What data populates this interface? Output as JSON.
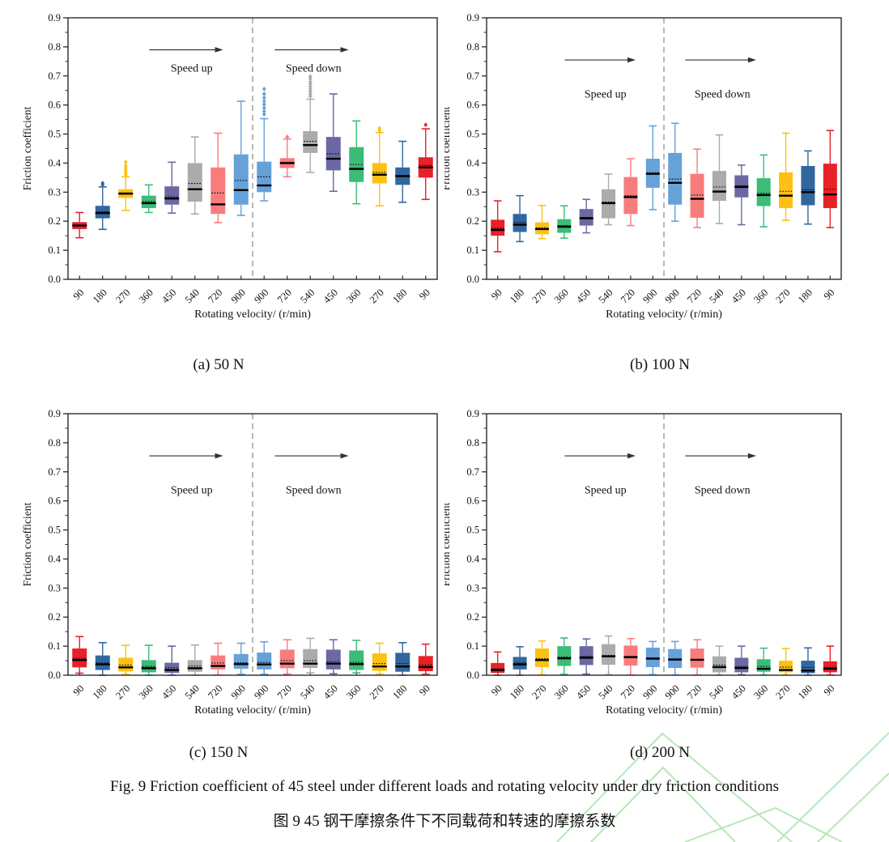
{
  "figure": {
    "caption_en": "Fig. 9 Friction coefficient of 45 steel under different loads and rotating velocity under dry friction conditions",
    "caption_zh": "图 9 45 钢干摩擦条件下不同载荷和转速的摩擦系数"
  },
  "annotations": {
    "speed_up": "Speed up",
    "speed_down": "Speed down"
  },
  "watermark_color": "#abe3ab",
  "chart_data": {
    "type": "box",
    "xlabel": "Rotating velocity/ (r/min)",
    "ylabel": "Friction coefficient",
    "ylim": [
      0,
      0.9
    ],
    "ytick_step": 0.1,
    "ytick_minor_step": 0.05,
    "grid": "off",
    "categories": [
      "90",
      "180",
      "270",
      "360",
      "450",
      "540",
      "720",
      "900",
      "900",
      "720",
      "540",
      "450",
      "360",
      "270",
      "180",
      "90"
    ],
    "box_colors": [
      "#e82127",
      "#31679e",
      "#fdc113",
      "#3bbc77",
      "#6b68a4",
      "#ababab",
      "#f87c7c",
      "#66a1d8",
      "#66a1d8",
      "#f87c7c",
      "#ababab",
      "#6b68a4",
      "#3bbc77",
      "#fdc113",
      "#31679e",
      "#e82127"
    ],
    "divider_after_category_index": 8,
    "charts": [
      {
        "id": "a",
        "label": "(a) 50 N",
        "load_n": 50,
        "annotation_y": {
          "arrow": 0.79,
          "text": 0.715
        },
        "boxes": [
          {
            "whislo": 0.143,
            "q1": 0.173,
            "med": 0.185,
            "mean": 0.186,
            "q3": 0.197,
            "whishi": 0.23,
            "outliers": []
          },
          {
            "whislo": 0.172,
            "q1": 0.21,
            "med": 0.228,
            "mean": 0.233,
            "q3": 0.253,
            "whishi": 0.318,
            "outliers": [
              0.325,
              0.331
            ]
          },
          {
            "whislo": 0.237,
            "q1": 0.28,
            "med": 0.295,
            "mean": 0.297,
            "q3": 0.31,
            "whishi": 0.353,
            "outliers": [
              0.36,
              0.368,
              0.375,
              0.383,
              0.391,
              0.403
            ]
          },
          {
            "whislo": 0.23,
            "q1": 0.245,
            "med": 0.262,
            "mean": 0.268,
            "q3": 0.288,
            "whishi": 0.325,
            "outliers": []
          },
          {
            "whislo": 0.228,
            "q1": 0.257,
            "med": 0.278,
            "mean": 0.284,
            "q3": 0.32,
            "whishi": 0.403,
            "outliers": []
          },
          {
            "whislo": 0.225,
            "q1": 0.267,
            "med": 0.31,
            "mean": 0.33,
            "q3": 0.4,
            "whishi": 0.49,
            "outliers": []
          },
          {
            "whislo": 0.195,
            "q1": 0.225,
            "med": 0.258,
            "mean": 0.297,
            "q3": 0.385,
            "whishi": 0.503,
            "outliers": []
          },
          {
            "whislo": 0.22,
            "q1": 0.257,
            "med": 0.307,
            "mean": 0.34,
            "q3": 0.43,
            "whishi": 0.613,
            "outliers": []
          },
          {
            "whislo": 0.27,
            "q1": 0.3,
            "med": 0.323,
            "mean": 0.353,
            "q3": 0.405,
            "whishi": 0.553,
            "outliers": [
              0.568,
              0.578,
              0.59,
              0.602,
              0.613,
              0.625,
              0.638,
              0.655
            ]
          },
          {
            "whislo": 0.353,
            "q1": 0.383,
            "med": 0.4,
            "mean": 0.403,
            "q3": 0.417,
            "whishi": 0.483,
            "outliers": [
              0.49
            ]
          },
          {
            "whislo": 0.368,
            "q1": 0.435,
            "med": 0.462,
            "mean": 0.475,
            "q3": 0.51,
            "whishi": 0.62,
            "outliers": [
              0.63,
              0.638,
              0.647,
              0.655,
              0.663,
              0.672,
              0.68,
              0.69,
              0.698
            ]
          },
          {
            "whislo": 0.303,
            "q1": 0.375,
            "med": 0.415,
            "mean": 0.432,
            "q3": 0.49,
            "whishi": 0.638,
            "outliers": []
          },
          {
            "whislo": 0.26,
            "q1": 0.335,
            "med": 0.38,
            "mean": 0.395,
            "q3": 0.455,
            "whishi": 0.545,
            "outliers": []
          },
          {
            "whislo": 0.253,
            "q1": 0.33,
            "med": 0.36,
            "mean": 0.368,
            "q3": 0.4,
            "whishi": 0.505,
            "outliers": [
              0.512,
              0.52
            ]
          },
          {
            "whislo": 0.265,
            "q1": 0.325,
            "med": 0.355,
            "mean": 0.358,
            "q3": 0.385,
            "whishi": 0.475,
            "outliers": []
          },
          {
            "whislo": 0.275,
            "q1": 0.35,
            "med": 0.385,
            "mean": 0.392,
            "q3": 0.42,
            "whishi": 0.518,
            "outliers": [
              0.532
            ]
          }
        ]
      },
      {
        "id": "b",
        "label": "(b) 100 N",
        "load_n": 100,
        "annotation_y": {
          "arrow": 0.755,
          "text": 0.625
        },
        "boxes": [
          {
            "whislo": 0.095,
            "q1": 0.15,
            "med": 0.17,
            "mean": 0.176,
            "q3": 0.205,
            "whishi": 0.27,
            "outliers": []
          },
          {
            "whislo": 0.13,
            "q1": 0.163,
            "med": 0.188,
            "mean": 0.196,
            "q3": 0.225,
            "whishi": 0.288,
            "outliers": []
          },
          {
            "whislo": 0.14,
            "q1": 0.155,
            "med": 0.173,
            "mean": 0.177,
            "q3": 0.196,
            "whishi": 0.254,
            "outliers": []
          },
          {
            "whislo": 0.142,
            "q1": 0.16,
            "med": 0.181,
            "mean": 0.185,
            "q3": 0.207,
            "whishi": 0.253,
            "outliers": []
          },
          {
            "whislo": 0.16,
            "q1": 0.185,
            "med": 0.21,
            "mean": 0.213,
            "q3": 0.242,
            "whishi": 0.275,
            "outliers": []
          },
          {
            "whislo": 0.188,
            "q1": 0.21,
            "med": 0.262,
            "mean": 0.266,
            "q3": 0.31,
            "whishi": 0.362,
            "outliers": []
          },
          {
            "whislo": 0.185,
            "q1": 0.225,
            "med": 0.283,
            "mean": 0.288,
            "q3": 0.352,
            "whishi": 0.415,
            "outliers": []
          },
          {
            "whislo": 0.24,
            "q1": 0.315,
            "med": 0.363,
            "mean": 0.367,
            "q3": 0.415,
            "whishi": 0.528,
            "outliers": []
          },
          {
            "whislo": 0.2,
            "q1": 0.257,
            "med": 0.332,
            "mean": 0.345,
            "q3": 0.435,
            "whishi": 0.537,
            "outliers": []
          },
          {
            "whislo": 0.178,
            "q1": 0.212,
            "med": 0.277,
            "mean": 0.29,
            "q3": 0.363,
            "whishi": 0.448,
            "outliers": []
          },
          {
            "whislo": 0.192,
            "q1": 0.27,
            "med": 0.302,
            "mean": 0.318,
            "q3": 0.373,
            "whishi": 0.497,
            "outliers": []
          },
          {
            "whislo": 0.188,
            "q1": 0.282,
            "med": 0.318,
            "mean": 0.322,
            "q3": 0.358,
            "whishi": 0.393,
            "outliers": []
          },
          {
            "whislo": 0.181,
            "q1": 0.252,
            "med": 0.29,
            "mean": 0.296,
            "q3": 0.348,
            "whishi": 0.428,
            "outliers": []
          },
          {
            "whislo": 0.203,
            "q1": 0.245,
            "med": 0.288,
            "mean": 0.303,
            "q3": 0.368,
            "whishi": 0.503,
            "outliers": []
          },
          {
            "whislo": 0.19,
            "q1": 0.255,
            "med": 0.3,
            "mean": 0.308,
            "q3": 0.39,
            "whishi": 0.442,
            "outliers": []
          },
          {
            "whislo": 0.178,
            "q1": 0.245,
            "med": 0.292,
            "mean": 0.31,
            "q3": 0.398,
            "whishi": 0.512,
            "outliers": []
          }
        ]
      },
      {
        "id": "c",
        "label": "(c) 150 N",
        "load_n": 150,
        "annotation_y": {
          "arrow": 0.755,
          "text": 0.625
        },
        "boxes": [
          {
            "whislo": 0.007,
            "q1": 0.027,
            "med": 0.052,
            "mean": 0.058,
            "q3": 0.092,
            "whishi": 0.133,
            "outliers": []
          },
          {
            "whislo": 0.0,
            "q1": 0.018,
            "med": 0.037,
            "mean": 0.042,
            "q3": 0.068,
            "whishi": 0.112,
            "outliers": []
          },
          {
            "whislo": 0.003,
            "q1": 0.013,
            "med": 0.027,
            "mean": 0.035,
            "q3": 0.06,
            "whishi": 0.103,
            "outliers": []
          },
          {
            "whislo": 0.0,
            "q1": 0.01,
            "med": 0.024,
            "mean": 0.03,
            "q3": 0.052,
            "whishi": 0.103,
            "outliers": []
          },
          {
            "whislo": 0.0,
            "q1": 0.008,
            "med": 0.018,
            "mean": 0.026,
            "q3": 0.043,
            "whishi": 0.1,
            "outliers": []
          },
          {
            "whislo": 0.0,
            "q1": 0.012,
            "med": 0.024,
            "mean": 0.032,
            "q3": 0.052,
            "whishi": 0.104,
            "outliers": []
          },
          {
            "whislo": 0.001,
            "q1": 0.02,
            "med": 0.032,
            "mean": 0.042,
            "q3": 0.068,
            "whishi": 0.11,
            "outliers": []
          },
          {
            "whislo": 0.003,
            "q1": 0.022,
            "med": 0.038,
            "mean": 0.043,
            "q3": 0.073,
            "whishi": 0.11,
            "outliers": []
          },
          {
            "whislo": 0.003,
            "q1": 0.02,
            "med": 0.037,
            "mean": 0.044,
            "q3": 0.078,
            "whishi": 0.115,
            "outliers": []
          },
          {
            "whislo": 0.004,
            "q1": 0.024,
            "med": 0.04,
            "mean": 0.05,
            "q3": 0.088,
            "whishi": 0.122,
            "outliers": []
          },
          {
            "whislo": 0.008,
            "q1": 0.025,
            "med": 0.04,
            "mean": 0.05,
            "q3": 0.09,
            "whishi": 0.127,
            "outliers": []
          },
          {
            "whislo": 0.005,
            "q1": 0.02,
            "med": 0.04,
            "mean": 0.047,
            "q3": 0.088,
            "whishi": 0.122,
            "outliers": []
          },
          {
            "whislo": 0.008,
            "q1": 0.018,
            "med": 0.038,
            "mean": 0.044,
            "q3": 0.085,
            "whishi": 0.12,
            "outliers": []
          },
          {
            "whislo": 0.004,
            "q1": 0.015,
            "med": 0.03,
            "mean": 0.04,
            "q3": 0.075,
            "whishi": 0.11,
            "outliers": []
          },
          {
            "whislo": 0.0,
            "q1": 0.012,
            "med": 0.03,
            "mean": 0.04,
            "q3": 0.077,
            "whishi": 0.112,
            "outliers": []
          },
          {
            "whislo": 0.003,
            "q1": 0.014,
            "med": 0.028,
            "mean": 0.035,
            "q3": 0.066,
            "whishi": 0.107,
            "outliers": []
          }
        ]
      },
      {
        "id": "d",
        "label": "(d) 200 N",
        "load_n": 200,
        "annotation_y": {
          "arrow": 0.755,
          "text": 0.625
        },
        "boxes": [
          {
            "whislo": 0.0,
            "q1": 0.008,
            "med": 0.018,
            "mean": 0.022,
            "q3": 0.042,
            "whishi": 0.08,
            "outliers": []
          },
          {
            "whislo": 0.0,
            "q1": 0.02,
            "med": 0.037,
            "mean": 0.042,
            "q3": 0.063,
            "whishi": 0.098,
            "outliers": []
          },
          {
            "whislo": 0.002,
            "q1": 0.028,
            "med": 0.052,
            "mean": 0.057,
            "q3": 0.092,
            "whishi": 0.118,
            "outliers": []
          },
          {
            "whislo": 0.003,
            "q1": 0.032,
            "med": 0.058,
            "mean": 0.063,
            "q3": 0.1,
            "whishi": 0.128,
            "outliers": []
          },
          {
            "whislo": 0.004,
            "q1": 0.035,
            "med": 0.06,
            "mean": 0.065,
            "q3": 0.1,
            "whishi": 0.125,
            "outliers": []
          },
          {
            "whislo": 0.002,
            "q1": 0.036,
            "med": 0.065,
            "mean": 0.068,
            "q3": 0.107,
            "whishi": 0.135,
            "outliers": []
          },
          {
            "whislo": 0.001,
            "q1": 0.033,
            "med": 0.062,
            "mean": 0.065,
            "q3": 0.102,
            "whishi": 0.126,
            "outliers": []
          },
          {
            "whislo": 0.002,
            "q1": 0.028,
            "med": 0.057,
            "mean": 0.06,
            "q3": 0.095,
            "whishi": 0.116,
            "outliers": []
          },
          {
            "whislo": 0.001,
            "q1": 0.025,
            "med": 0.054,
            "mean": 0.055,
            "q3": 0.09,
            "whishi": 0.116,
            "outliers": []
          },
          {
            "whislo": 0.001,
            "q1": 0.026,
            "med": 0.053,
            "mean": 0.054,
            "q3": 0.092,
            "whishi": 0.122,
            "outliers": []
          },
          {
            "whislo": 0.001,
            "q1": 0.01,
            "med": 0.028,
            "mean": 0.035,
            "q3": 0.065,
            "whishi": 0.1,
            "outliers": []
          },
          {
            "whislo": 0.002,
            "q1": 0.01,
            "med": 0.025,
            "mean": 0.03,
            "q3": 0.06,
            "whishi": 0.1,
            "outliers": []
          },
          {
            "whislo": 0.001,
            "q1": 0.012,
            "med": 0.022,
            "mean": 0.03,
            "q3": 0.055,
            "whishi": 0.093,
            "outliers": []
          },
          {
            "whislo": 0.001,
            "q1": 0.01,
            "med": 0.018,
            "mean": 0.028,
            "q3": 0.05,
            "whishi": 0.092,
            "outliers": []
          },
          {
            "whislo": 0.0,
            "q1": 0.007,
            "med": 0.016,
            "mean": 0.027,
            "q3": 0.05,
            "whishi": 0.094,
            "outliers": []
          },
          {
            "whislo": 0.001,
            "q1": 0.01,
            "med": 0.022,
            "mean": 0.027,
            "q3": 0.048,
            "whishi": 0.1,
            "outliers": []
          }
        ]
      }
    ]
  }
}
